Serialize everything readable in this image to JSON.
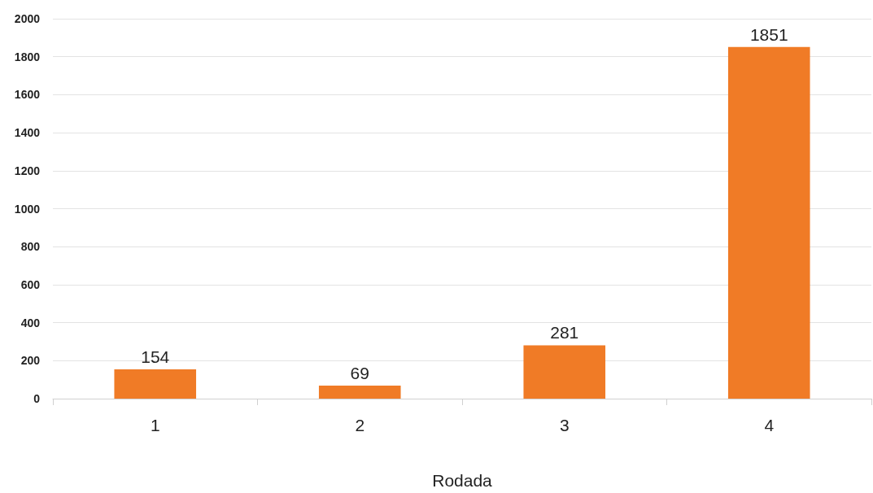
{
  "chart_data": {
    "type": "bar",
    "xlabel": "Rodada",
    "categories": [
      "1",
      "2",
      "3",
      "4"
    ],
    "values": [
      154,
      69,
      281,
      1851
    ],
    "color": "#f07b26",
    "ylim": [
      0,
      2000
    ],
    "yticks": [
      0,
      200,
      400,
      600,
      800,
      1000,
      1200,
      1400,
      1600,
      1800,
      2000
    ],
    "grid": "y",
    "data_labels": true
  }
}
